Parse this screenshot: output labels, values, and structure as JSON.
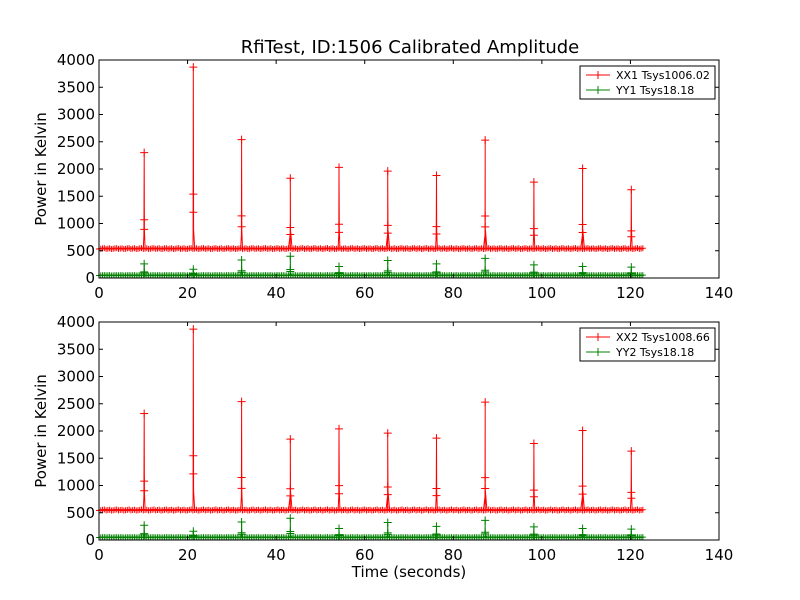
{
  "figure_title": "RfiTest, ID:1506 Calibrated Amplitude",
  "chart_data": [
    {
      "type": "line",
      "ylabel": "Power in Kelvin",
      "xlabel": "",
      "xlim": [
        0,
        140
      ],
      "ylim": [
        0,
        4000
      ],
      "xticks": [
        "0",
        "20",
        "40",
        "60",
        "80",
        "100",
        "120",
        "140"
      ],
      "yticks": [
        "0",
        "500",
        "1000",
        "1500",
        "2000",
        "2500",
        "3000",
        "3500",
        "4000"
      ],
      "legend_position": "top-right",
      "x_range": [
        0,
        123
      ],
      "series": [
        {
          "name": "XX1 Tsys1006.02",
          "color": "#ff0000",
          "baseline": 540,
          "spikes": [
            {
              "x": 10.2,
              "peak": 2300
            },
            {
              "x": 21.3,
              "peak": 3870
            },
            {
              "x": 32.2,
              "peak": 2540
            },
            {
              "x": 43.2,
              "peak": 1830
            },
            {
              "x": 54.2,
              "peak": 2030
            },
            {
              "x": 65.2,
              "peak": 1960
            },
            {
              "x": 76.2,
              "peak": 1880
            },
            {
              "x": 87.2,
              "peak": 2530
            },
            {
              "x": 98.2,
              "peak": 1760
            },
            {
              "x": 109.2,
              "peak": 2010
            },
            {
              "x": 120.2,
              "peak": 1620
            }
          ]
        },
        {
          "name": "YY1 Tsys18.18",
          "color": "#008000",
          "baseline": 50,
          "spikes": [
            {
              "x": 10.2,
              "peak": 260
            },
            {
              "x": 21.3,
              "peak": 160
            },
            {
              "x": 32.2,
              "peak": 330
            },
            {
              "x": 43.2,
              "peak": 400
            },
            {
              "x": 54.2,
              "peak": 210
            },
            {
              "x": 65.2,
              "peak": 320
            },
            {
              "x": 76.2,
              "peak": 260
            },
            {
              "x": 87.2,
              "peak": 360
            },
            {
              "x": 98.2,
              "peak": 240
            },
            {
              "x": 109.2,
              "peak": 210
            },
            {
              "x": 120.2,
              "peak": 200
            }
          ]
        }
      ]
    },
    {
      "type": "line",
      "ylabel": "Power in Kelvin",
      "xlabel": "Time (seconds)",
      "xlim": [
        0,
        140
      ],
      "ylim": [
        0,
        4000
      ],
      "xticks": [
        "0",
        "20",
        "40",
        "60",
        "80",
        "100",
        "120",
        "140"
      ],
      "yticks": [
        "0",
        "500",
        "1000",
        "1500",
        "2000",
        "2500",
        "3000",
        "3500",
        "4000"
      ],
      "legend_position": "top-right",
      "x_range": [
        0,
        123
      ],
      "series": [
        {
          "name": "XX2 Tsys1008.66",
          "color": "#ff0000",
          "baseline": 550,
          "spikes": [
            {
              "x": 10.2,
              "peak": 2320
            },
            {
              "x": 21.3,
              "peak": 3870
            },
            {
              "x": 32.2,
              "peak": 2540
            },
            {
              "x": 43.2,
              "peak": 1850
            },
            {
              "x": 54.2,
              "peak": 2040
            },
            {
              "x": 65.2,
              "peak": 1960
            },
            {
              "x": 76.2,
              "peak": 1870
            },
            {
              "x": 87.2,
              "peak": 2530
            },
            {
              "x": 98.2,
              "peak": 1770
            },
            {
              "x": 109.2,
              "peak": 2010
            },
            {
              "x": 120.2,
              "peak": 1630
            }
          ]
        },
        {
          "name": "YY2 Tsys18.18",
          "color": "#008000",
          "baseline": 50,
          "spikes": [
            {
              "x": 10.2,
              "peak": 270
            },
            {
              "x": 21.3,
              "peak": 160
            },
            {
              "x": 32.2,
              "peak": 330
            },
            {
              "x": 43.2,
              "peak": 400
            },
            {
              "x": 54.2,
              "peak": 210
            },
            {
              "x": 65.2,
              "peak": 320
            },
            {
              "x": 76.2,
              "peak": 250
            },
            {
              "x": 87.2,
              "peak": 360
            },
            {
              "x": 98.2,
              "peak": 240
            },
            {
              "x": 109.2,
              "peak": 210
            },
            {
              "x": 120.2,
              "peak": 200
            }
          ]
        }
      ]
    }
  ]
}
